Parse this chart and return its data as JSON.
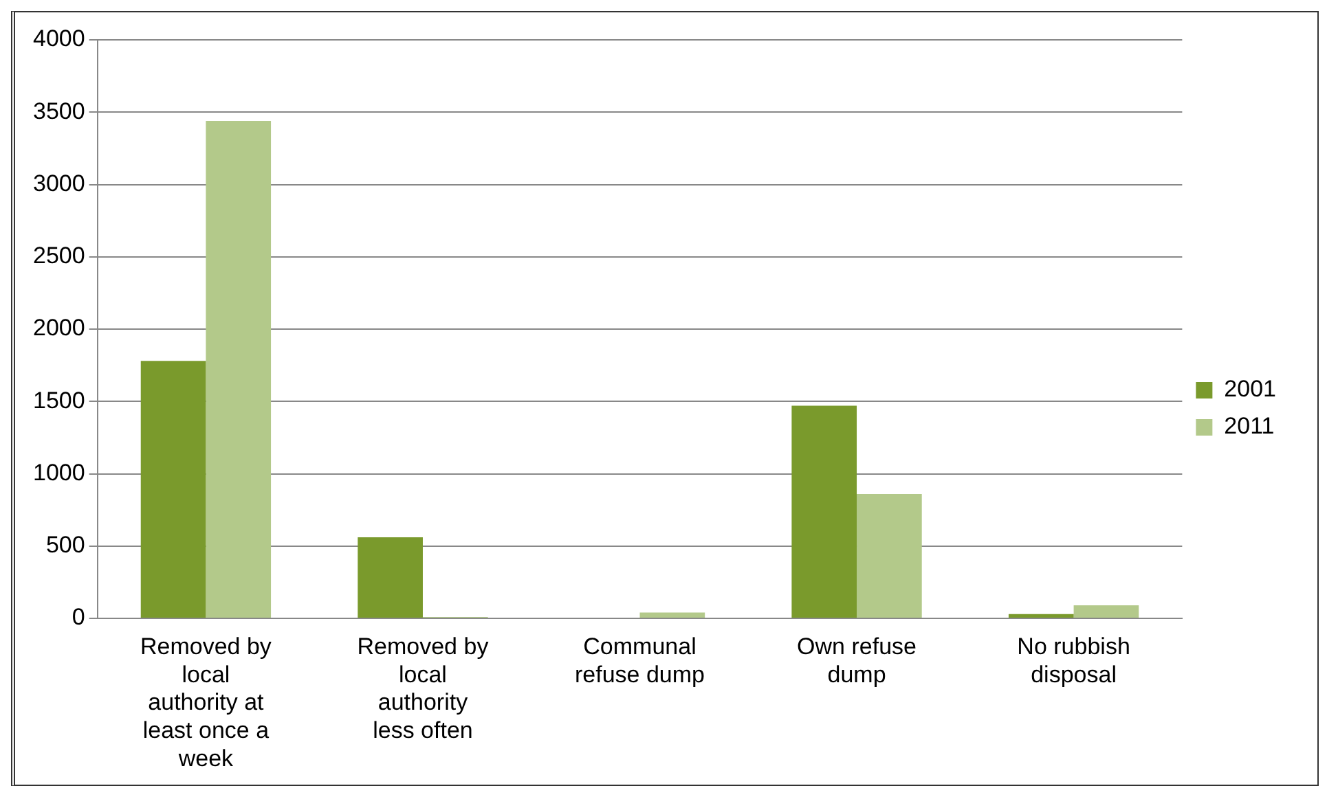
{
  "chart_data": {
    "type": "bar",
    "categories": [
      "Removed by local authority at least once a week",
      "Removed by local authority less often",
      "Communal refuse dump",
      "Own refuse dump",
      "No rubbish disposal"
    ],
    "series": [
      {
        "name": "2001",
        "color": "#7a9a2c",
        "values": [
          1780,
          560,
          0,
          1470,
          30
        ]
      },
      {
        "name": "2011",
        "color": "#b3c98a",
        "values": [
          3440,
          10,
          40,
          860,
          90
        ]
      }
    ],
    "ylim": [
      0,
      4000
    ],
    "yticks": [
      0,
      500,
      1000,
      1500,
      2000,
      2500,
      3000,
      3500,
      4000
    ],
    "grid": "y",
    "legend": "right"
  }
}
